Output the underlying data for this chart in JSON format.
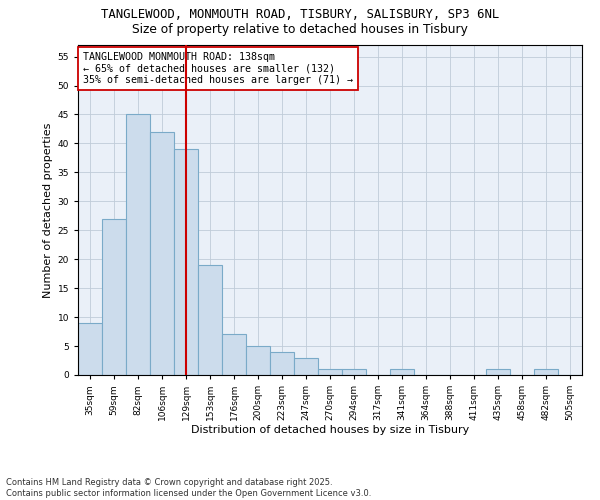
{
  "title_line1": "TANGLEWOOD, MONMOUTH ROAD, TISBURY, SALISBURY, SP3 6NL",
  "title_line2": "Size of property relative to detached houses in Tisbury",
  "xlabel": "Distribution of detached houses by size in Tisbury",
  "ylabel": "Number of detached properties",
  "categories": [
    "35sqm",
    "59sqm",
    "82sqm",
    "106sqm",
    "129sqm",
    "153sqm",
    "176sqm",
    "200sqm",
    "223sqm",
    "247sqm",
    "270sqm",
    "294sqm",
    "317sqm",
    "341sqm",
    "364sqm",
    "388sqm",
    "411sqm",
    "435sqm",
    "458sqm",
    "482sqm",
    "505sqm"
  ],
  "values": [
    9,
    27,
    45,
    42,
    39,
    19,
    7,
    5,
    4,
    3,
    1,
    1,
    0,
    1,
    0,
    0,
    0,
    1,
    0,
    1,
    0
  ],
  "bar_color": "#ccdcec",
  "bar_edgecolor": "#7aaac8",
  "vline_x_index": 4,
  "vline_color": "#cc0000",
  "annotation_text": "TANGLEWOOD MONMOUTH ROAD: 138sqm\n← 65% of detached houses are smaller (132)\n35% of semi-detached houses are larger (71) →",
  "annotation_box_edgecolor": "#cc0000",
  "ylim": [
    0,
    57
  ],
  "yticks": [
    0,
    5,
    10,
    15,
    20,
    25,
    30,
    35,
    40,
    45,
    50,
    55
  ],
  "grid_color": "#c0ccd8",
  "background_color": "#eaf0f8",
  "footer_text": "Contains HM Land Registry data © Crown copyright and database right 2025.\nContains public sector information licensed under the Open Government Licence v3.0.",
  "fig_width": 6.0,
  "fig_height": 5.0,
  "dpi": 100,
  "title_fontsize": 8.8,
  "subtitle_fontsize": 8.8,
  "axis_label_fontsize": 8,
  "tick_fontsize": 6.5,
  "annotation_fontsize": 7.2,
  "footer_fontsize": 6.0
}
